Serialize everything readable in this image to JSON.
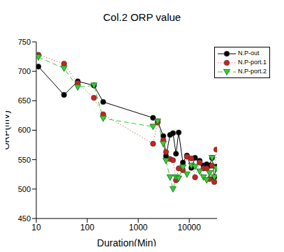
{
  "chart_data": {
    "type": "line",
    "title": "Col.2 ORP value",
    "x_label": "Duration(Min)",
    "y_label": "ORP(mV)",
    "log": "x",
    "grid": false,
    "legend": "upper right",
    "xlim": [
      10,
      35000
    ],
    "xticks": [
      10,
      100,
      1000,
      10000
    ],
    "ylim": [
      450,
      750
    ],
    "yticks": [
      450,
      500,
      550,
      600,
      650,
      700,
      750
    ],
    "x": [
      11,
      35,
      65,
      135,
      205,
      1950,
      2400,
      3100,
      3500,
      4200,
      4800,
      5500,
      6200,
      7500,
      9000,
      11000,
      13000,
      16000,
      19000,
      22000,
      25000,
      28000,
      31000,
      34000
    ],
    "series": [
      {
        "name": "N.P-out",
        "color": "#000000",
        "marker": "circle",
        "line_style": "solid",
        "values": [
          708,
          660,
          683,
          676,
          648,
          621,
          615,
          590,
          556,
          592,
          595,
          560,
          596,
          545,
          557,
          536,
          553,
          548,
          540,
          542,
          540,
          553,
          520,
          538
        ]
      },
      {
        "name": "N.P-port.1",
        "color": "#cc2020",
        "marker": "circle",
        "line_style": "dotted",
        "values": [
          728,
          713,
          680,
          655,
          627,
          577,
          613,
          583,
          563,
          551,
          549,
          515,
          535,
          532,
          555,
          552,
          520,
          545,
          535,
          535,
          517,
          540,
          512,
          567
        ]
      },
      {
        "name": "N.P-port.2",
        "color": "#33cc33",
        "marker": "triangle",
        "line_style": "dashed",
        "values": [
          724,
          705,
          673,
          676,
          620,
          606,
          615,
          577,
          548,
          520,
          500,
          520,
          518,
          537,
          525,
          540,
          538,
          530,
          520,
          515,
          527,
          553,
          520,
          535
        ]
      }
    ]
  }
}
